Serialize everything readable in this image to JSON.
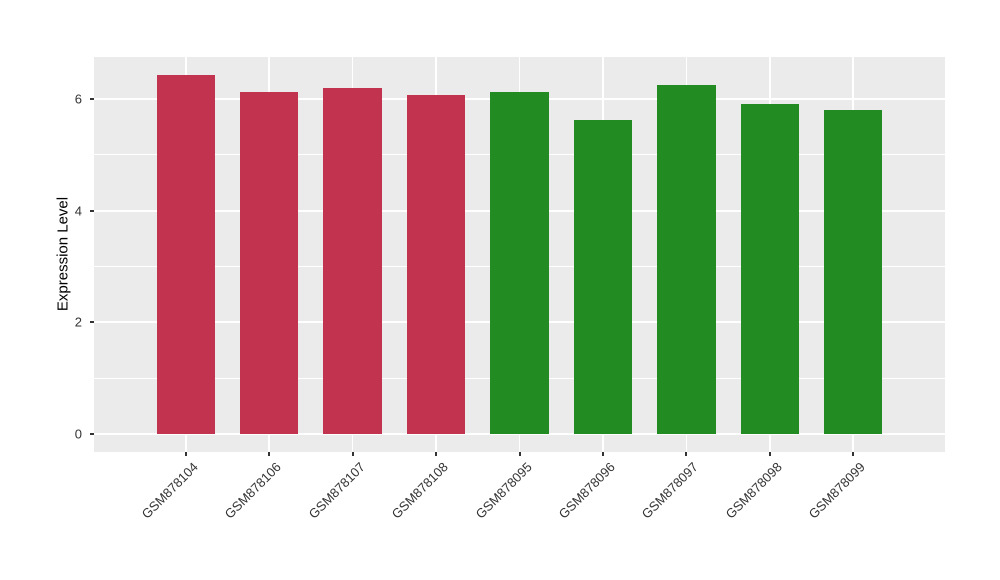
{
  "chart_data": {
    "type": "bar",
    "title": "",
    "xlabel": "",
    "ylabel": "Expression Level",
    "categories": [
      "GSM878104",
      "GSM878106",
      "GSM878107",
      "GSM878108",
      "GSM878095",
      "GSM878096",
      "GSM878097",
      "GSM878098",
      "GSM878099"
    ],
    "values": [
      6.43,
      6.13,
      6.2,
      6.07,
      6.12,
      5.63,
      6.25,
      5.9,
      5.81
    ],
    "bar_color_keys": [
      "red",
      "red",
      "red",
      "red",
      "green",
      "green",
      "green",
      "green",
      "green"
    ],
    "colors": {
      "red": "#C2334F",
      "green": "#228B22",
      "panel_background": "#EBEBEB",
      "grid_major": "#FFFFFF",
      "grid_minor": "#FFFFFF",
      "tick_text": "#333333",
      "tick_mark": "#333333",
      "axis_title_text": "#000000",
      "page_background": "#FFFFFF"
    },
    "y_ticks": [
      0,
      2,
      4,
      6
    ],
    "y_minor_ticks": [
      1,
      3,
      5
    ],
    "ylim": [
      -0.32,
      6.75
    ],
    "grid": "on",
    "legend": "none",
    "x_tick_label_rotation_deg": 45,
    "layout": {
      "outer_category_padding": 0.6,
      "bar_width_ratio": 0.7
    }
  }
}
